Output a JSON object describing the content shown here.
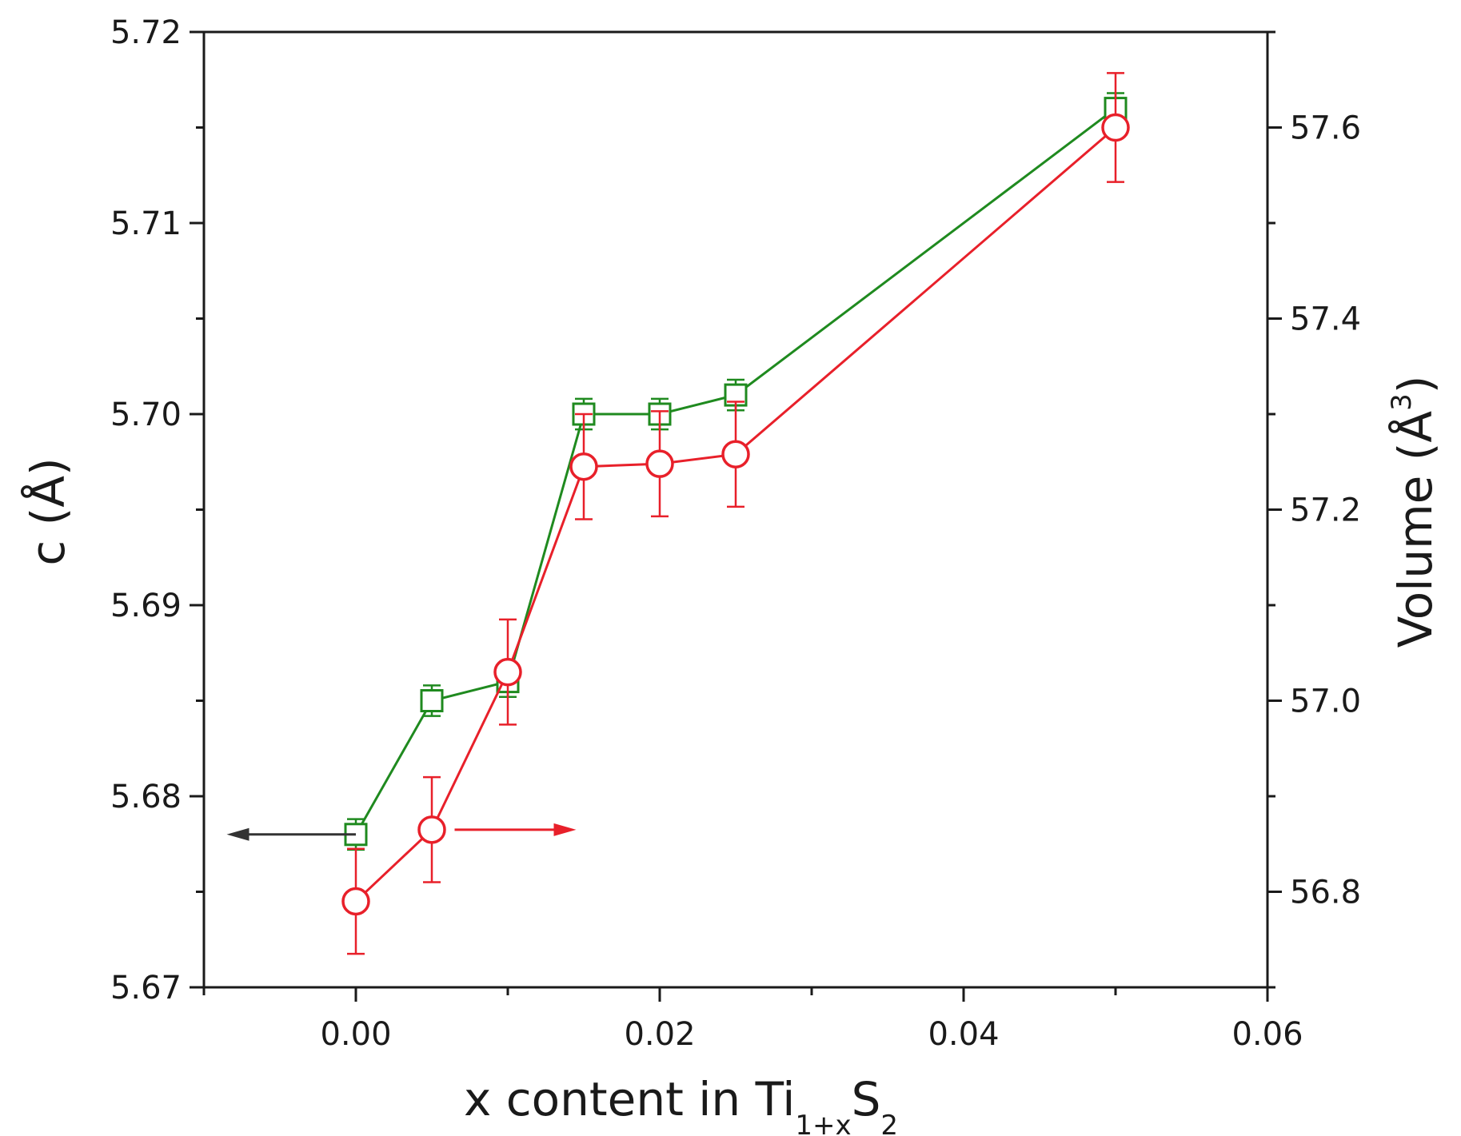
{
  "chart_data": {
    "type": "scatter",
    "x_axis": {
      "label_main": "x content in Ti",
      "label_sub1": "1+x",
      "label_mid": "S",
      "label_sub2": "2",
      "range": [
        -0.01,
        0.06
      ],
      "ticks": [
        0.0,
        0.02,
        0.04,
        0.06
      ],
      "tick_labels": [
        "0.00",
        "0.02",
        "0.04",
        "0.06"
      ],
      "minor_ticks": [
        -0.01,
        0.01,
        0.03,
        0.05
      ]
    },
    "y_left": {
      "label_main": "c (",
      "label_unit": "Å",
      "label_end": ")",
      "range": [
        5.67,
        5.72
      ],
      "ticks": [
        5.67,
        5.68,
        5.69,
        5.7,
        5.71,
        5.72
      ],
      "tick_labels": [
        "5.67",
        "5.68",
        "5.69",
        "5.70",
        "5.71",
        "5.72"
      ],
      "minor_ticks": [
        5.675,
        5.685,
        5.695,
        5.705,
        5.715
      ]
    },
    "y_right": {
      "label_main": "Volume (",
      "label_unit": "Å",
      "label_sup": "3",
      "label_end": ")",
      "range": [
        56.7,
        57.7
      ],
      "ticks": [
        56.8,
        57.0,
        57.2,
        57.4,
        57.6
      ],
      "tick_labels": [
        "56.8",
        "57.0",
        "57.2",
        "57.4",
        "57.6"
      ],
      "minor_ticks": [
        56.7,
        56.9,
        57.1,
        57.3,
        57.5,
        57.7
      ]
    },
    "series": [
      {
        "axis": "left",
        "marker": "square",
        "color": "#1f8a1f",
        "x": [
          0.0,
          0.005,
          0.01,
          0.015,
          0.02,
          0.025,
          0.05
        ],
        "y": [
          5.678,
          5.685,
          5.686,
          5.7,
          5.7,
          5.701,
          5.716
        ],
        "err": [
          0.0008,
          0.0008,
          0.0008,
          0.0008,
          0.0008,
          0.0008,
          0.0008
        ]
      },
      {
        "axis": "right",
        "marker": "circle",
        "color": "#e8202a",
        "x": [
          0.0,
          0.005,
          0.01,
          0.015,
          0.02,
          0.025,
          0.05
        ],
        "y": [
          56.79,
          56.865,
          57.03,
          57.245,
          57.248,
          57.258,
          57.6
        ],
        "err": [
          0.055,
          0.055,
          0.055,
          0.055,
          0.055,
          0.055,
          0.057
        ]
      }
    ],
    "arrows": [
      {
        "direction": "left",
        "color": "#333333",
        "x_from": 0.0,
        "x_to": -0.0085,
        "axis": "left",
        "y": 5.678
      },
      {
        "direction": "right",
        "color": "#e8202a",
        "x_from": 0.0065,
        "x_to": 0.0145,
        "axis": "right",
        "y": 56.865
      }
    ]
  }
}
